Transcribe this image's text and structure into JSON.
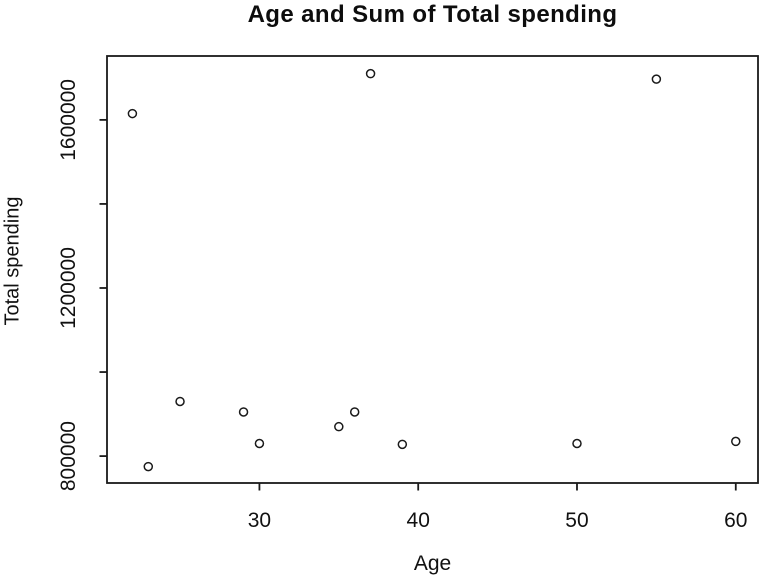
{
  "chart_data": {
    "type": "scatter",
    "title": "Age and Sum of Total spending",
    "xlabel": "Age",
    "ylabel": "Total spending",
    "xlim": [
      20.4,
      61.4
    ],
    "ylim": [
      736000,
      1752000
    ],
    "grid": false,
    "legend": "none",
    "marker": "open-circle",
    "marker_color": "#1a1a1a",
    "axis_color": "#1a1a1a",
    "x_ticks": [
      {
        "value": 30,
        "label": "30"
      },
      {
        "value": 40,
        "label": "40"
      },
      {
        "value": 50,
        "label": "50"
      },
      {
        "value": 60,
        "label": "60"
      }
    ],
    "y_ticks": [
      {
        "value": 800000,
        "label": "800000"
      },
      {
        "value": 1000000,
        "label": ""
      },
      {
        "value": 1200000,
        "label": "1200000"
      },
      {
        "value": 1400000,
        "label": ""
      },
      {
        "value": 1600000,
        "label": "1600000"
      }
    ],
    "points": [
      {
        "age": 22,
        "total_spending": 1615000
      },
      {
        "age": 23,
        "total_spending": 775000
      },
      {
        "age": 25,
        "total_spending": 930000
      },
      {
        "age": 29,
        "total_spending": 905000
      },
      {
        "age": 30,
        "total_spending": 830000
      },
      {
        "age": 35,
        "total_spending": 870000
      },
      {
        "age": 36,
        "total_spending": 905000
      },
      {
        "age": 37,
        "total_spending": 1710000
      },
      {
        "age": 39,
        "total_spending": 828000
      },
      {
        "age": 50,
        "total_spending": 830000
      },
      {
        "age": 55,
        "total_spending": 1697000
      },
      {
        "age": 60,
        "total_spending": 835000
      }
    ]
  }
}
